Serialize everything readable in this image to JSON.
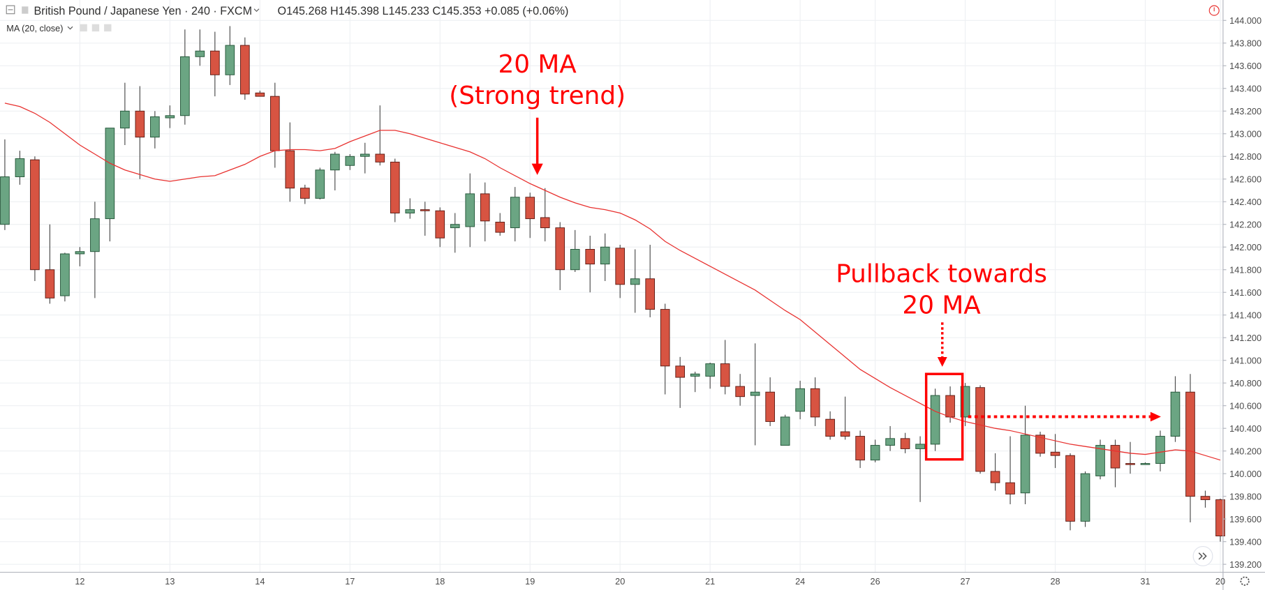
{
  "chart_data": {
    "type": "candlestick",
    "header": {
      "symbol": "British Pound / Japanese Yen · 240 · FXCM",
      "quote": "O145.268 H145.398 L145.233 C145.353 +0.085 (+0.06%)"
    },
    "annotations": {
      "ma_label": "20 MA",
      "ma_note": "(Strong trend)",
      "pullback_label": "Pullback towards",
      "pullback_target": "20 MA"
    },
    "up_color": "#6ba583",
    "down_color": "#d75442",
    "categories": [
      null,
      null,
      null,
      null,
      null,
      "12",
      null,
      null,
      null,
      null,
      null,
      "13",
      null,
      null,
      null,
      null,
      null,
      "14",
      null,
      null,
      null,
      null,
      null,
      "17",
      null,
      null,
      null,
      null,
      null,
      "18",
      null,
      null,
      null,
      null,
      null,
      "19",
      null,
      null,
      null,
      null,
      null,
      "20",
      null,
      null,
      null,
      null,
      null,
      "21",
      null,
      null,
      null,
      null,
      null,
      "24",
      null,
      null,
      null,
      null,
      "26",
      null,
      null,
      null,
      null,
      null,
      "27",
      null,
      null,
      null,
      null,
      null,
      "28",
      null,
      null,
      null,
      null,
      null,
      "31",
      null,
      null,
      null,
      null,
      "20"
    ],
    "open": [
      142.2,
      142.62,
      142.77,
      141.8,
      141.57,
      141.94,
      141.96,
      142.25,
      143.05,
      143.2,
      142.97,
      143.14,
      143.16,
      143.68,
      143.73,
      143.52,
      143.78,
      143.36,
      143.33,
      142.85,
      142.52,
      142.43,
      142.68,
      142.72,
      142.8,
      142.82,
      142.75,
      142.3,
      142.33,
      142.32,
      142.17,
      142.18,
      142.47,
      142.22,
      142.17,
      142.44,
      142.26,
      142.17,
      141.8,
      141.98,
      141.85,
      141.99,
      141.67,
      141.72,
      141.45,
      140.95,
      140.86,
      140.86,
      140.97,
      140.77,
      140.69,
      140.72,
      140.25,
      140.55,
      140.75,
      140.48,
      140.37,
      140.33,
      140.12,
      140.25,
      140.31,
      140.22,
      140.26,
      140.69,
      140.5,
      140.76,
      140.02,
      139.92,
      139.83,
      140.34,
      140.19,
      140.16,
      139.58,
      139.98,
      140.25,
      140.09,
      140.08,
      140.09,
      140.33,
      140.72,
      139.8,
      139.77
    ],
    "high": [
      142.95,
      142.85,
      142.8,
      142.2,
      141.95,
      142.0,
      142.4,
      143.05,
      143.45,
      143.42,
      143.2,
      143.25,
      143.92,
      143.92,
      143.9,
      143.95,
      143.85,
      143.38,
      143.45,
      143.1,
      142.55,
      142.7,
      142.84,
      142.82,
      142.92,
      143.25,
      142.78,
      142.43,
      142.4,
      142.35,
      142.3,
      142.65,
      142.57,
      142.3,
      142.53,
      142.48,
      142.52,
      142.22,
      142.15,
      142.1,
      142.12,
      142.02,
      141.98,
      142.02,
      141.5,
      141.03,
      140.9,
      140.98,
      141.18,
      140.88,
      141.15,
      140.85,
      140.52,
      140.82,
      140.85,
      140.55,
      140.68,
      140.38,
      140.3,
      140.42,
      140.36,
      140.33,
      140.75,
      140.77,
      140.8,
      140.78,
      140.18,
      140.33,
      140.6,
      140.37,
      140.35,
      140.18,
      140.02,
      140.3,
      140.3,
      140.28,
      140.1,
      140.38,
      140.86,
      140.88,
      139.85,
      139.78
    ],
    "low": [
      142.15,
      142.55,
      141.7,
      141.5,
      141.52,
      141.83,
      141.55,
      142.05,
      142.9,
      142.6,
      142.87,
      143.05,
      143.08,
      143.6,
      143.33,
      143.43,
      143.3,
      143.33,
      142.7,
      142.4,
      142.38,
      142.42,
      142.5,
      142.68,
      142.65,
      142.72,
      142.22,
      142.25,
      142.1,
      142.0,
      141.95,
      142.0,
      142.05,
      142.1,
      142.05,
      142.08,
      142.05,
      141.62,
      141.78,
      141.6,
      141.7,
      141.55,
      141.42,
      141.38,
      140.7,
      140.58,
      140.72,
      140.75,
      140.7,
      140.6,
      140.25,
      140.42,
      140.25,
      140.48,
      140.42,
      140.3,
      140.3,
      140.05,
      140.1,
      140.2,
      140.18,
      139.75,
      140.2,
      140.45,
      140.42,
      140.0,
      139.85,
      139.73,
      139.73,
      140.15,
      140.05,
      139.5,
      139.53,
      139.95,
      139.88,
      140.0,
      140.08,
      140.02,
      140.28,
      139.57,
      139.7,
      139.4
    ],
    "close": [
      142.62,
      142.78,
      141.8,
      141.55,
      141.94,
      141.96,
      142.25,
      143.05,
      143.2,
      142.97,
      143.15,
      143.16,
      143.68,
      143.73,
      143.52,
      143.78,
      143.35,
      143.33,
      142.85,
      142.52,
      142.43,
      142.68,
      142.82,
      142.8,
      142.82,
      142.75,
      142.3,
      142.33,
      142.32,
      142.08,
      142.2,
      142.47,
      142.23,
      142.13,
      142.44,
      142.25,
      142.17,
      141.8,
      141.98,
      141.85,
      142.0,
      141.67,
      141.72,
      141.45,
      140.95,
      140.85,
      140.88,
      140.97,
      140.77,
      140.68,
      140.72,
      140.46,
      140.5,
      140.75,
      140.5,
      140.33,
      140.33,
      140.12,
      140.25,
      140.31,
      140.22,
      140.26,
      140.69,
      140.5,
      140.77,
      140.02,
      139.92,
      139.82,
      140.34,
      140.18,
      140.16,
      139.58,
      140.0,
      140.25,
      140.05,
      140.08,
      140.09,
      140.33,
      140.72,
      139.8,
      139.77,
      139.45
    ],
    "ma": {
      "name": "MA (20, close)",
      "color": "#e8312f",
      "values": [
        143.27,
        143.24,
        143.18,
        143.1,
        143.0,
        142.9,
        142.82,
        142.74,
        142.68,
        142.64,
        142.6,
        142.58,
        142.6,
        142.62,
        142.63,
        142.68,
        142.73,
        142.8,
        142.85,
        142.86,
        142.86,
        142.85,
        142.87,
        142.93,
        142.98,
        143.03,
        143.03,
        143.0,
        142.96,
        142.92,
        142.88,
        142.84,
        142.78,
        142.7,
        142.63,
        142.56,
        142.5,
        142.44,
        142.39,
        142.35,
        142.33,
        142.3,
        142.24,
        142.16,
        142.05,
        141.97,
        141.9,
        141.83,
        141.76,
        141.69,
        141.62,
        141.53,
        141.44,
        141.36,
        141.25,
        141.14,
        141.03,
        140.92,
        140.84,
        140.76,
        140.69,
        140.62,
        140.55,
        140.5,
        140.46,
        140.43,
        140.4,
        140.38,
        140.35,
        140.32,
        140.29,
        140.26,
        140.24,
        140.22,
        140.2,
        140.18,
        140.17,
        140.19,
        140.21,
        140.2,
        140.16,
        140.12
      ]
    },
    "ylim": [
      139.13,
      144.18
    ],
    "yticks": [
      {
        "value": 139.2,
        "label": "139.200"
      },
      {
        "value": 139.4,
        "label": "139.400"
      },
      {
        "value": 139.6,
        "label": "139.600"
      },
      {
        "value": 139.8,
        "label": "139.800"
      },
      {
        "value": 140.0,
        "label": "140.000"
      },
      {
        "value": 140.2,
        "label": "140.200"
      },
      {
        "value": 140.4,
        "label": "140.400"
      },
      {
        "value": 140.6,
        "label": "140.600"
      },
      {
        "value": 140.8,
        "label": "140.800"
      },
      {
        "value": 141.0,
        "label": "141.000"
      },
      {
        "value": 141.2,
        "label": "141.200"
      },
      {
        "value": 141.4,
        "label": "141.400"
      },
      {
        "value": 141.6,
        "label": "141.600"
      },
      {
        "value": 141.8,
        "label": "141.800"
      },
      {
        "value": 142.0,
        "label": "142.000"
      },
      {
        "value": 142.2,
        "label": "142.200"
      },
      {
        "value": 142.4,
        "label": "142.400"
      },
      {
        "value": 142.6,
        "label": "142.600"
      },
      {
        "value": 142.8,
        "label": "142.800"
      },
      {
        "value": 143.0,
        "label": "143.000"
      },
      {
        "value": 143.2,
        "label": "143.200"
      },
      {
        "value": 143.4,
        "label": "143.400"
      },
      {
        "value": 143.6,
        "label": "143.600"
      },
      {
        "value": 143.8,
        "label": "143.800"
      },
      {
        "value": 144.0,
        "label": "144.000"
      }
    ],
    "grid": true
  }
}
